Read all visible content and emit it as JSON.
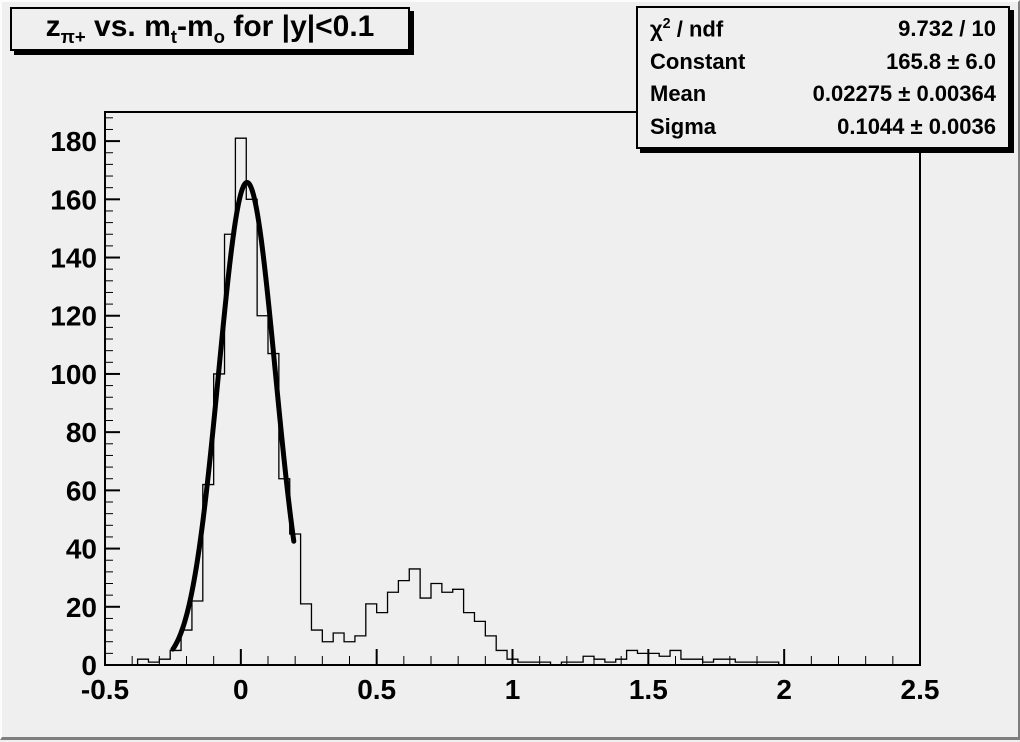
{
  "title": {
    "z": "z",
    "z_sub": "π+",
    "mid1": " vs. m",
    "m1_sub": "t",
    "mid2": "-m",
    "m2_sub": "o",
    "rest": " for |y|<0.1"
  },
  "stats": {
    "chi": "χ",
    "chi_sup": "2",
    "chi_rest": " / ndf",
    "chi_value": "9.732 / 10",
    "rows": [
      {
        "label": "Constant",
        "value": "165.8 ± 6.0"
      },
      {
        "label": "Mean",
        "value": "0.02275 ± 0.00364"
      },
      {
        "label": "Sigma",
        "value": "0.1044 ± 0.0036"
      }
    ]
  },
  "chart_data": {
    "type": "bar",
    "title": "z_{π+} vs. m_t-m_o for |y|<0.1",
    "xlabel": "",
    "ylabel": "",
    "xlim": [
      -0.5,
      2.5
    ],
    "ylim": [
      0,
      190
    ],
    "x0": -0.5,
    "bin_width": 0.04,
    "bins": [
      0,
      0,
      0,
      2,
      1,
      2,
      5,
      12,
      22,
      62,
      100,
      148,
      181,
      160,
      120,
      107,
      64,
      45,
      21,
      12,
      8,
      11,
      8,
      10,
      21,
      18,
      25,
      29,
      33,
      23,
      28,
      25,
      26,
      18,
      15,
      10,
      5,
      2,
      1,
      1,
      1,
      0,
      1,
      1,
      3,
      2,
      1,
      2,
      5,
      4,
      4,
      3,
      5,
      2,
      2,
      1,
      2,
      2,
      1,
      1,
      1,
      1,
      0,
      0,
      0,
      0,
      0,
      0,
      0,
      0,
      0,
      0,
      0,
      0,
      0
    ],
    "x_major_ticks": [
      -0.5,
      0,
      0.5,
      1,
      1.5,
      2,
      2.5
    ],
    "x_tick_labels": [
      "-0.5",
      "0",
      "0.5",
      "1",
      "1.5",
      "2",
      "2.5"
    ],
    "x_minor_step": 0.1,
    "y_major_ticks": [
      0,
      20,
      40,
      60,
      80,
      100,
      120,
      140,
      160,
      180
    ],
    "y_tick_labels": [
      "0",
      "20",
      "40",
      "60",
      "80",
      "100",
      "120",
      "140",
      "160",
      "180"
    ],
    "y_minor_step": 4,
    "fit": {
      "type": "gaussian",
      "constant": 165.8,
      "mean": 0.02275,
      "sigma": 0.1044,
      "draw_range": [
        -0.25,
        0.195
      ]
    },
    "legend_position": "none",
    "grid": false,
    "colors": {
      "line": "#000000",
      "fit": "#000000",
      "background": "#efefef"
    }
  }
}
